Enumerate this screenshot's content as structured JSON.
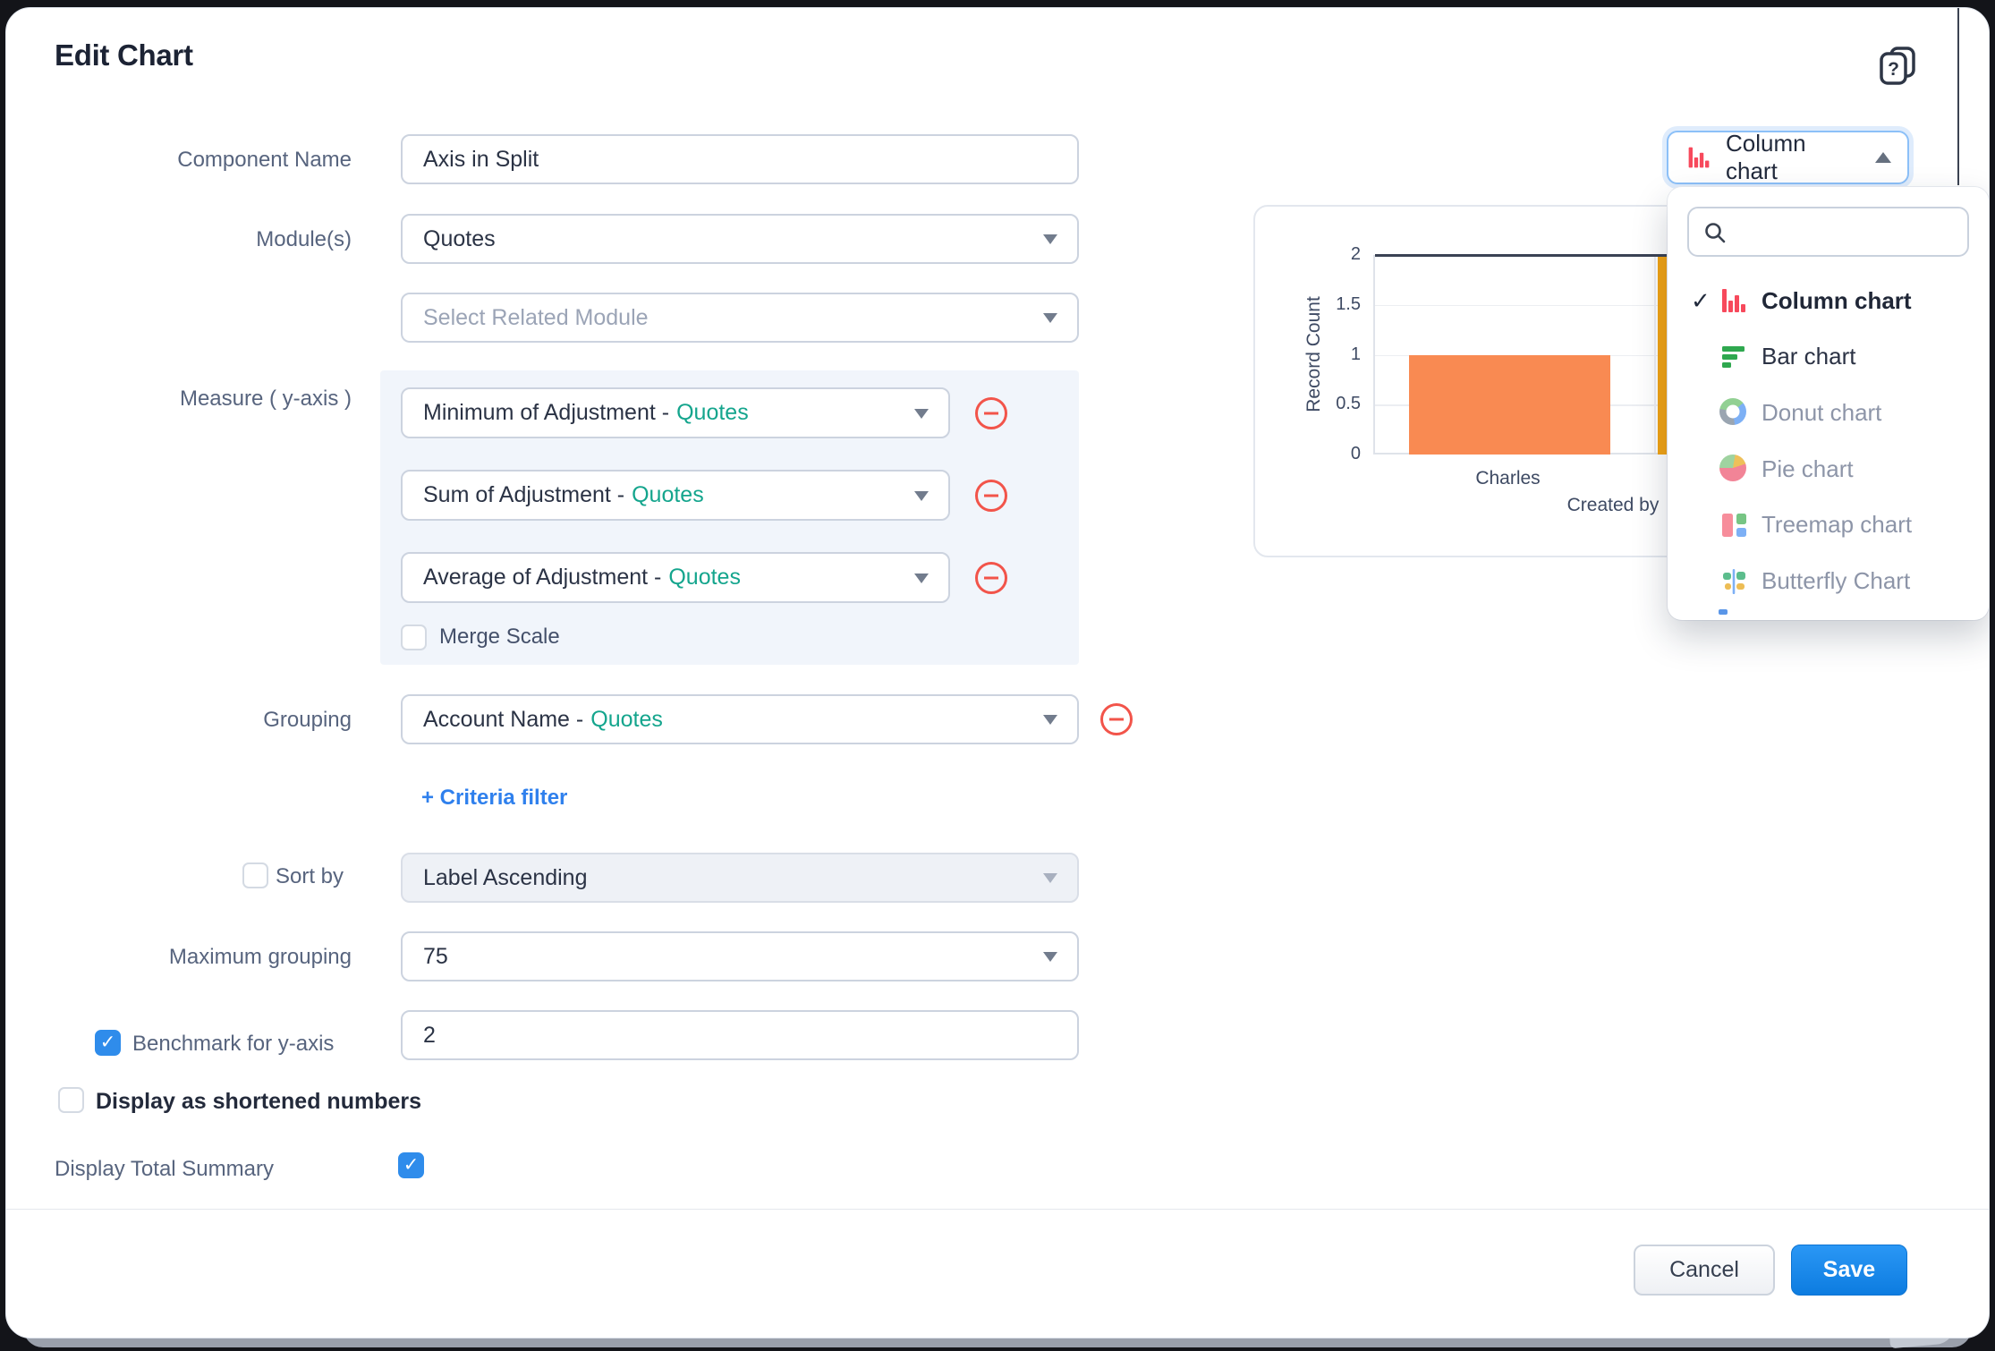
{
  "title": "Edit Chart",
  "chart_type_selector": {
    "selected_label": "Column chart",
    "search_placeholder": "",
    "options": [
      {
        "label": "Column chart",
        "icon": "column-chart",
        "selected": true,
        "style": "selected"
      },
      {
        "label": "Bar chart",
        "icon": "bar-chart",
        "selected": false,
        "style": "dark"
      },
      {
        "label": "Donut chart",
        "icon": "donut-chart",
        "selected": false,
        "style": "muted"
      },
      {
        "label": "Pie chart",
        "icon": "pie-chart",
        "selected": false,
        "style": "muted"
      },
      {
        "label": "Treemap chart",
        "icon": "treemap-chart",
        "selected": false,
        "style": "muted"
      },
      {
        "label": "Butterfly Chart",
        "icon": "butterfly-chart",
        "selected": false,
        "style": "muted"
      }
    ]
  },
  "form": {
    "component_name": {
      "label": "Component Name",
      "value": "Axis in Split"
    },
    "modules": {
      "label": "Module(s)",
      "value": "Quotes"
    },
    "related_module": {
      "placeholder": "Select Related Module"
    },
    "measure": {
      "label": "Measure ( y-axis )",
      "rows": [
        {
          "field": "Minimum of Adjustment -",
          "module": "Quotes"
        },
        {
          "field": "Sum of Adjustment -",
          "module": "Quotes"
        },
        {
          "field": "Average of Adjustment -",
          "module": "Quotes"
        }
      ],
      "merge_scale": {
        "label": "Merge Scale",
        "checked": false
      }
    },
    "grouping": {
      "label": "Grouping",
      "field": "Account Name -",
      "module": "Quotes"
    },
    "criteria_filter_label": "+ Criteria filter",
    "sort_by": {
      "label": "Sort by",
      "checked": false,
      "value": "Label Ascending",
      "disabled": true
    },
    "maximum_grouping": {
      "label": "Maximum grouping",
      "value": "75"
    },
    "benchmark": {
      "label": "Benchmark for y-axis",
      "checked": true,
      "value": "2"
    },
    "shortened_numbers": {
      "label": "Display as shortened numbers",
      "checked": false
    },
    "total_summary": {
      "label": "Display Total Summary",
      "checked": true
    }
  },
  "chart_data": {
    "type": "bar",
    "categories": [
      "Charles",
      ""
    ],
    "values": [
      1,
      2
    ],
    "bar_colors": [
      "#f98a52",
      "#f3a413"
    ],
    "ylabel": "Record Count",
    "xlabel": "Created by",
    "ylim": [
      0,
      2
    ],
    "yticks": [
      0,
      0.5,
      1,
      1.5,
      2
    ],
    "benchmark_line": 2,
    "grid": true,
    "legend": "none"
  },
  "footer": {
    "cancel_label": "Cancel",
    "save_label": "Save"
  },
  "colors": {
    "accent_blue": "#2f8ceb",
    "module_teal": "#14a58d",
    "danger_red": "#f2544a",
    "bar_orange": "#f98a52",
    "bar_yellow": "#f3a413",
    "benchmark_line": "#3a4254",
    "selected_type_red": "#f7495c"
  }
}
